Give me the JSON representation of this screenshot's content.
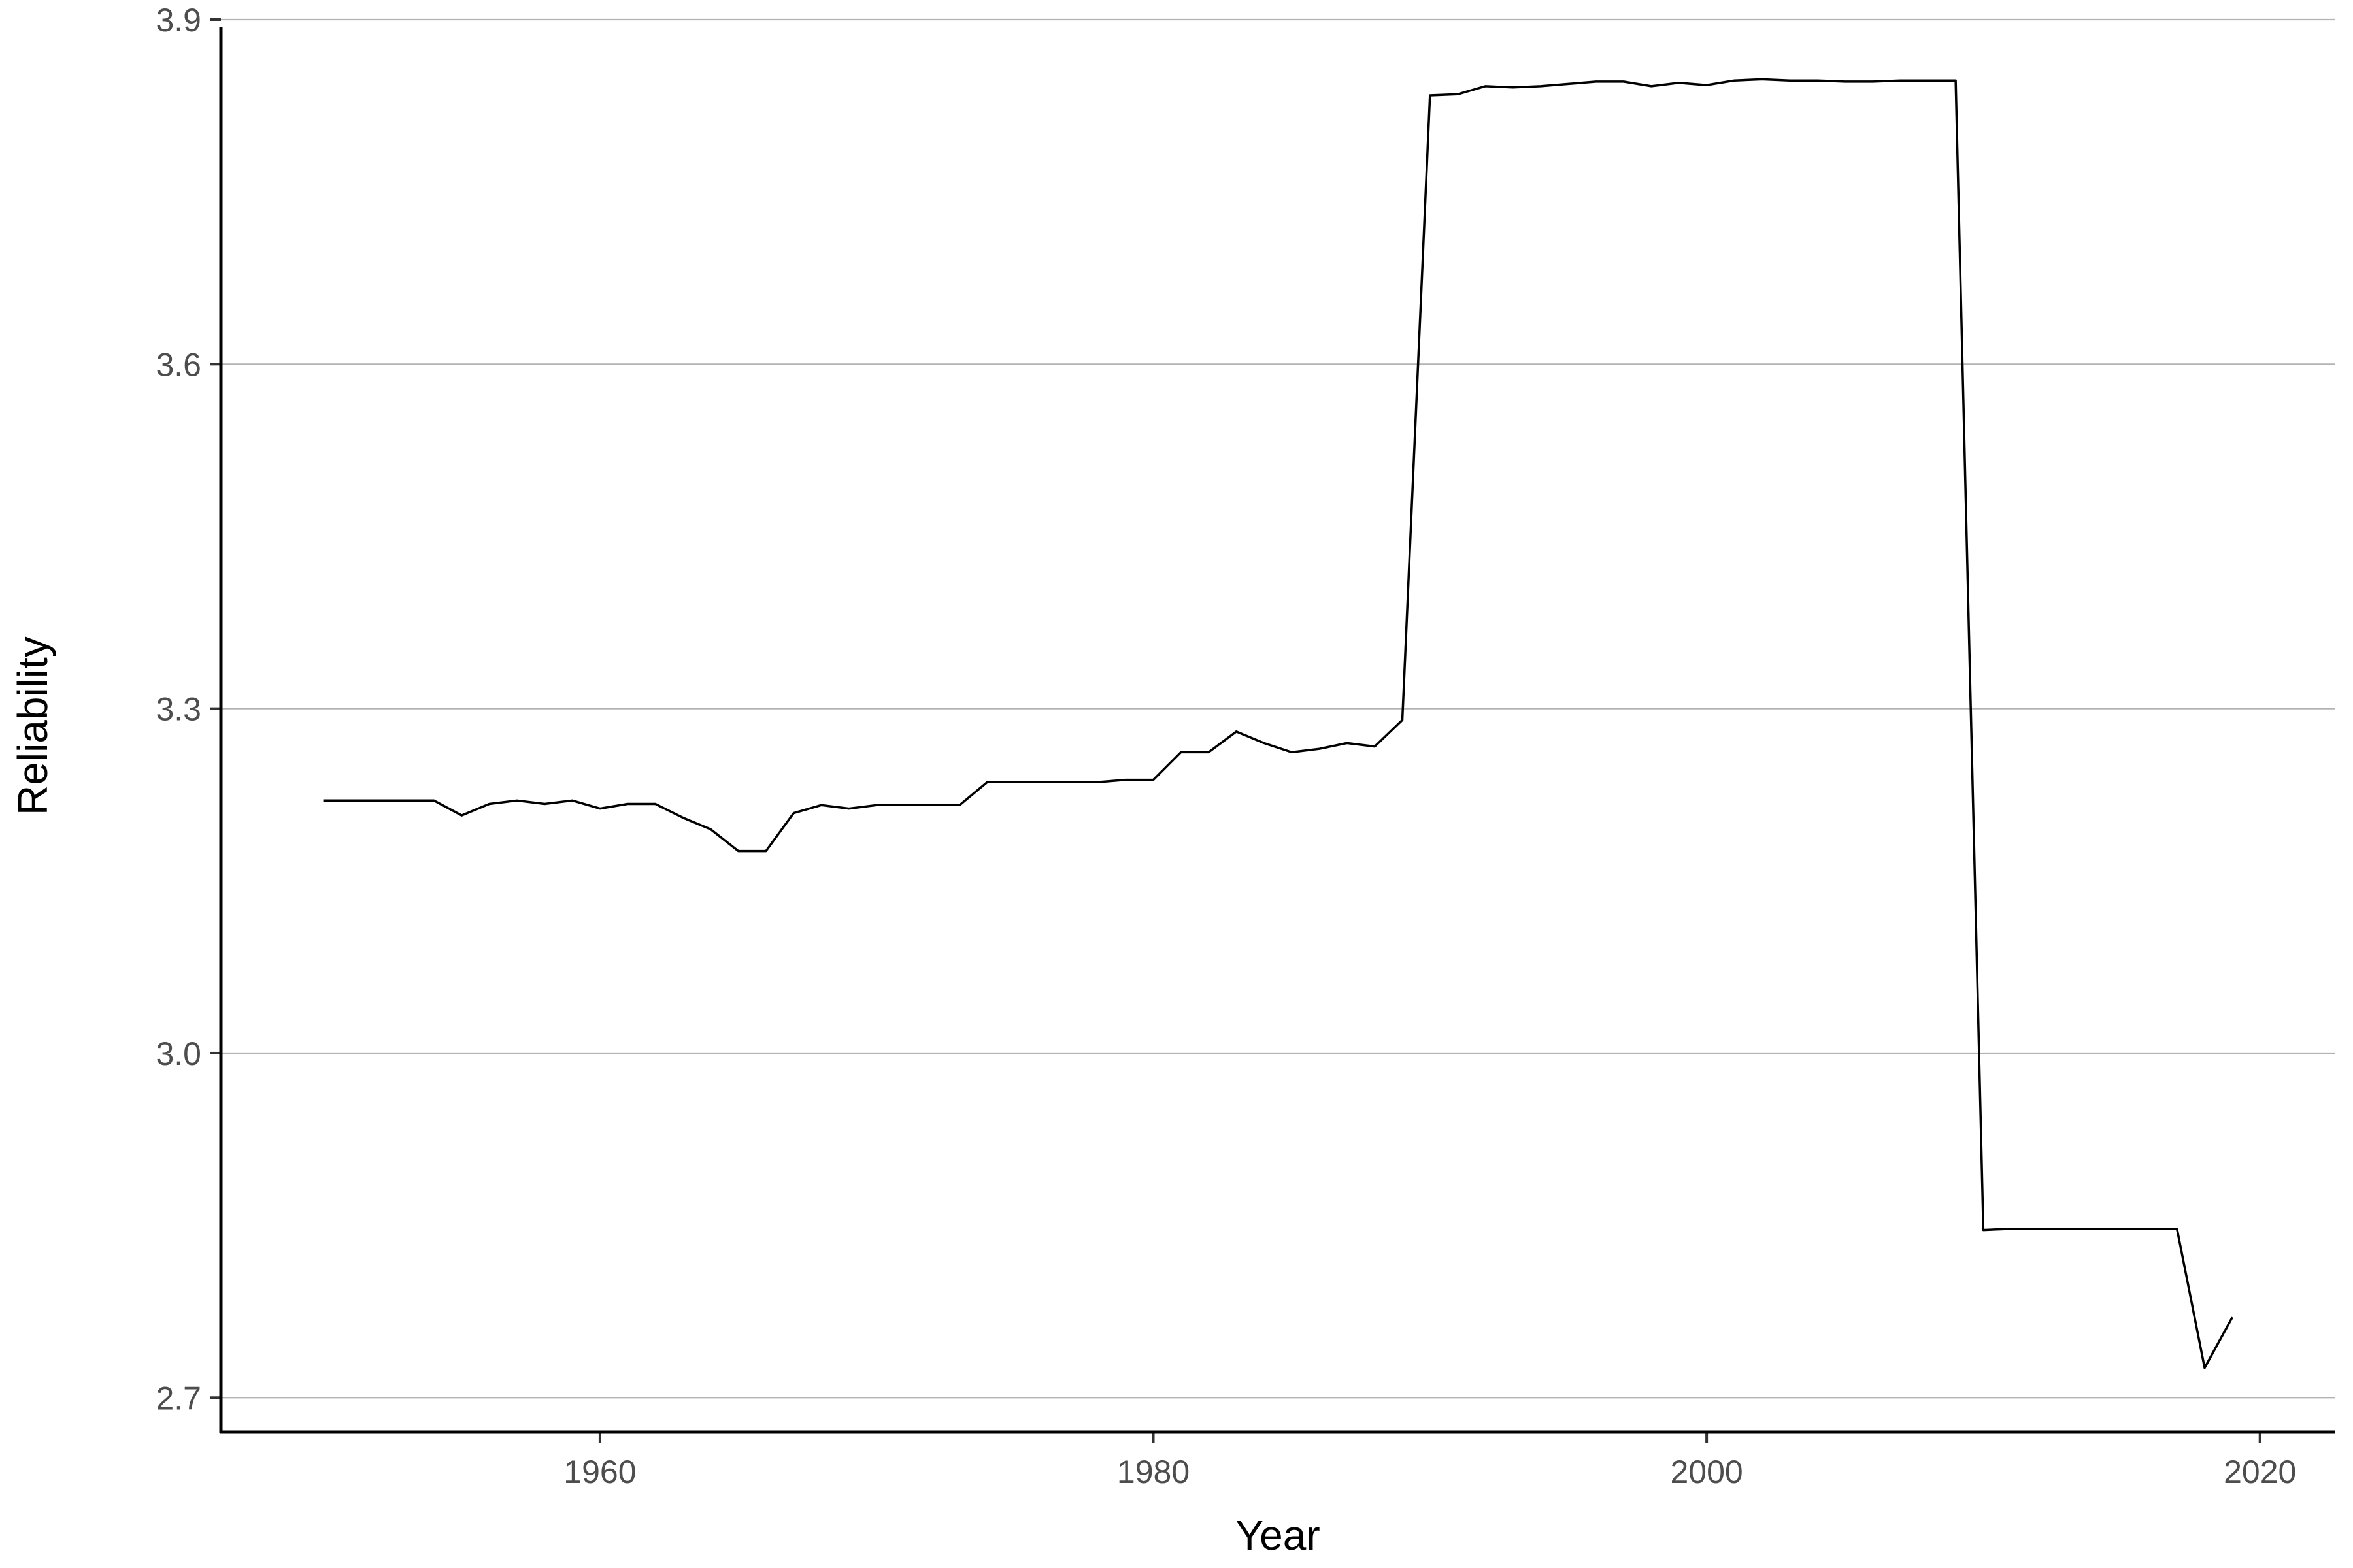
{
  "chart_data": {
    "type": "line",
    "title": "",
    "xlabel": "Year",
    "ylabel": "Reliability",
    "xlim": [
      1946.3,
      2022.7
    ],
    "ylim": [
      2.67,
      3.9
    ],
    "x_ticks": [
      1960,
      1980,
      2000,
      2020
    ],
    "x_tick_labels": [
      "1960",
      "1980",
      "2000",
      "2020"
    ],
    "y_ticks": [
      2.7,
      3.0,
      3.3,
      3.6,
      3.9
    ],
    "y_tick_labels": [
      "2.7",
      "3.0",
      "3.3",
      "3.6",
      "3.9"
    ],
    "grid": {
      "horizontal_major": true,
      "vertical": false
    },
    "legend": "none",
    "colors": {
      "line": "#000000",
      "grid": "#b3b3b3",
      "axis": "#000000"
    },
    "series": [
      {
        "x": [
          1950,
          1951,
          1952,
          1953,
          1954,
          1955,
          1956,
          1957,
          1958,
          1959,
          1960,
          1961,
          1962,
          1963,
          1964,
          1965,
          1966,
          1967,
          1968,
          1969,
          1970,
          1971,
          1972,
          1973,
          1974,
          1975,
          1976,
          1977,
          1978,
          1979,
          1980,
          1981,
          1982,
          1983,
          1984,
          1985,
          1986,
          1987,
          1988,
          1989,
          1990,
          1991,
          1992,
          1993,
          1994,
          1995,
          1996,
          1997,
          1998,
          1999,
          2000,
          2001,
          2002,
          2003,
          2004,
          2005,
          2006,
          2007,
          2008,
          2009,
          2010,
          2011,
          2012,
          2013,
          2014,
          2015,
          2016,
          2017,
          2018,
          2019
        ],
        "values": [
          3.22,
          3.22,
          3.22,
          3.22,
          3.22,
          3.207,
          3.217,
          3.22,
          3.217,
          3.22,
          3.213,
          3.217,
          3.217,
          3.205,
          3.195,
          3.176,
          3.176,
          3.209,
          3.216,
          3.213,
          3.216,
          3.216,
          3.216,
          3.216,
          3.236,
          3.236,
          3.236,
          3.236,
          3.236,
          3.238,
          3.238,
          3.262,
          3.262,
          3.28,
          3.27,
          3.262,
          3.265,
          3.27,
          3.267,
          3.29,
          3.834,
          3.835,
          3.842,
          3.841,
          3.842,
          3.844,
          3.846,
          3.846,
          3.842,
          3.845,
          3.843,
          3.847,
          3.848,
          3.847,
          3.847,
          3.846,
          3.846,
          3.847,
          3.847,
          3.847,
          2.846,
          2.847,
          2.847,
          2.847,
          2.847,
          2.847,
          2.847,
          2.847,
          2.726,
          2.77
        ]
      }
    ]
  }
}
